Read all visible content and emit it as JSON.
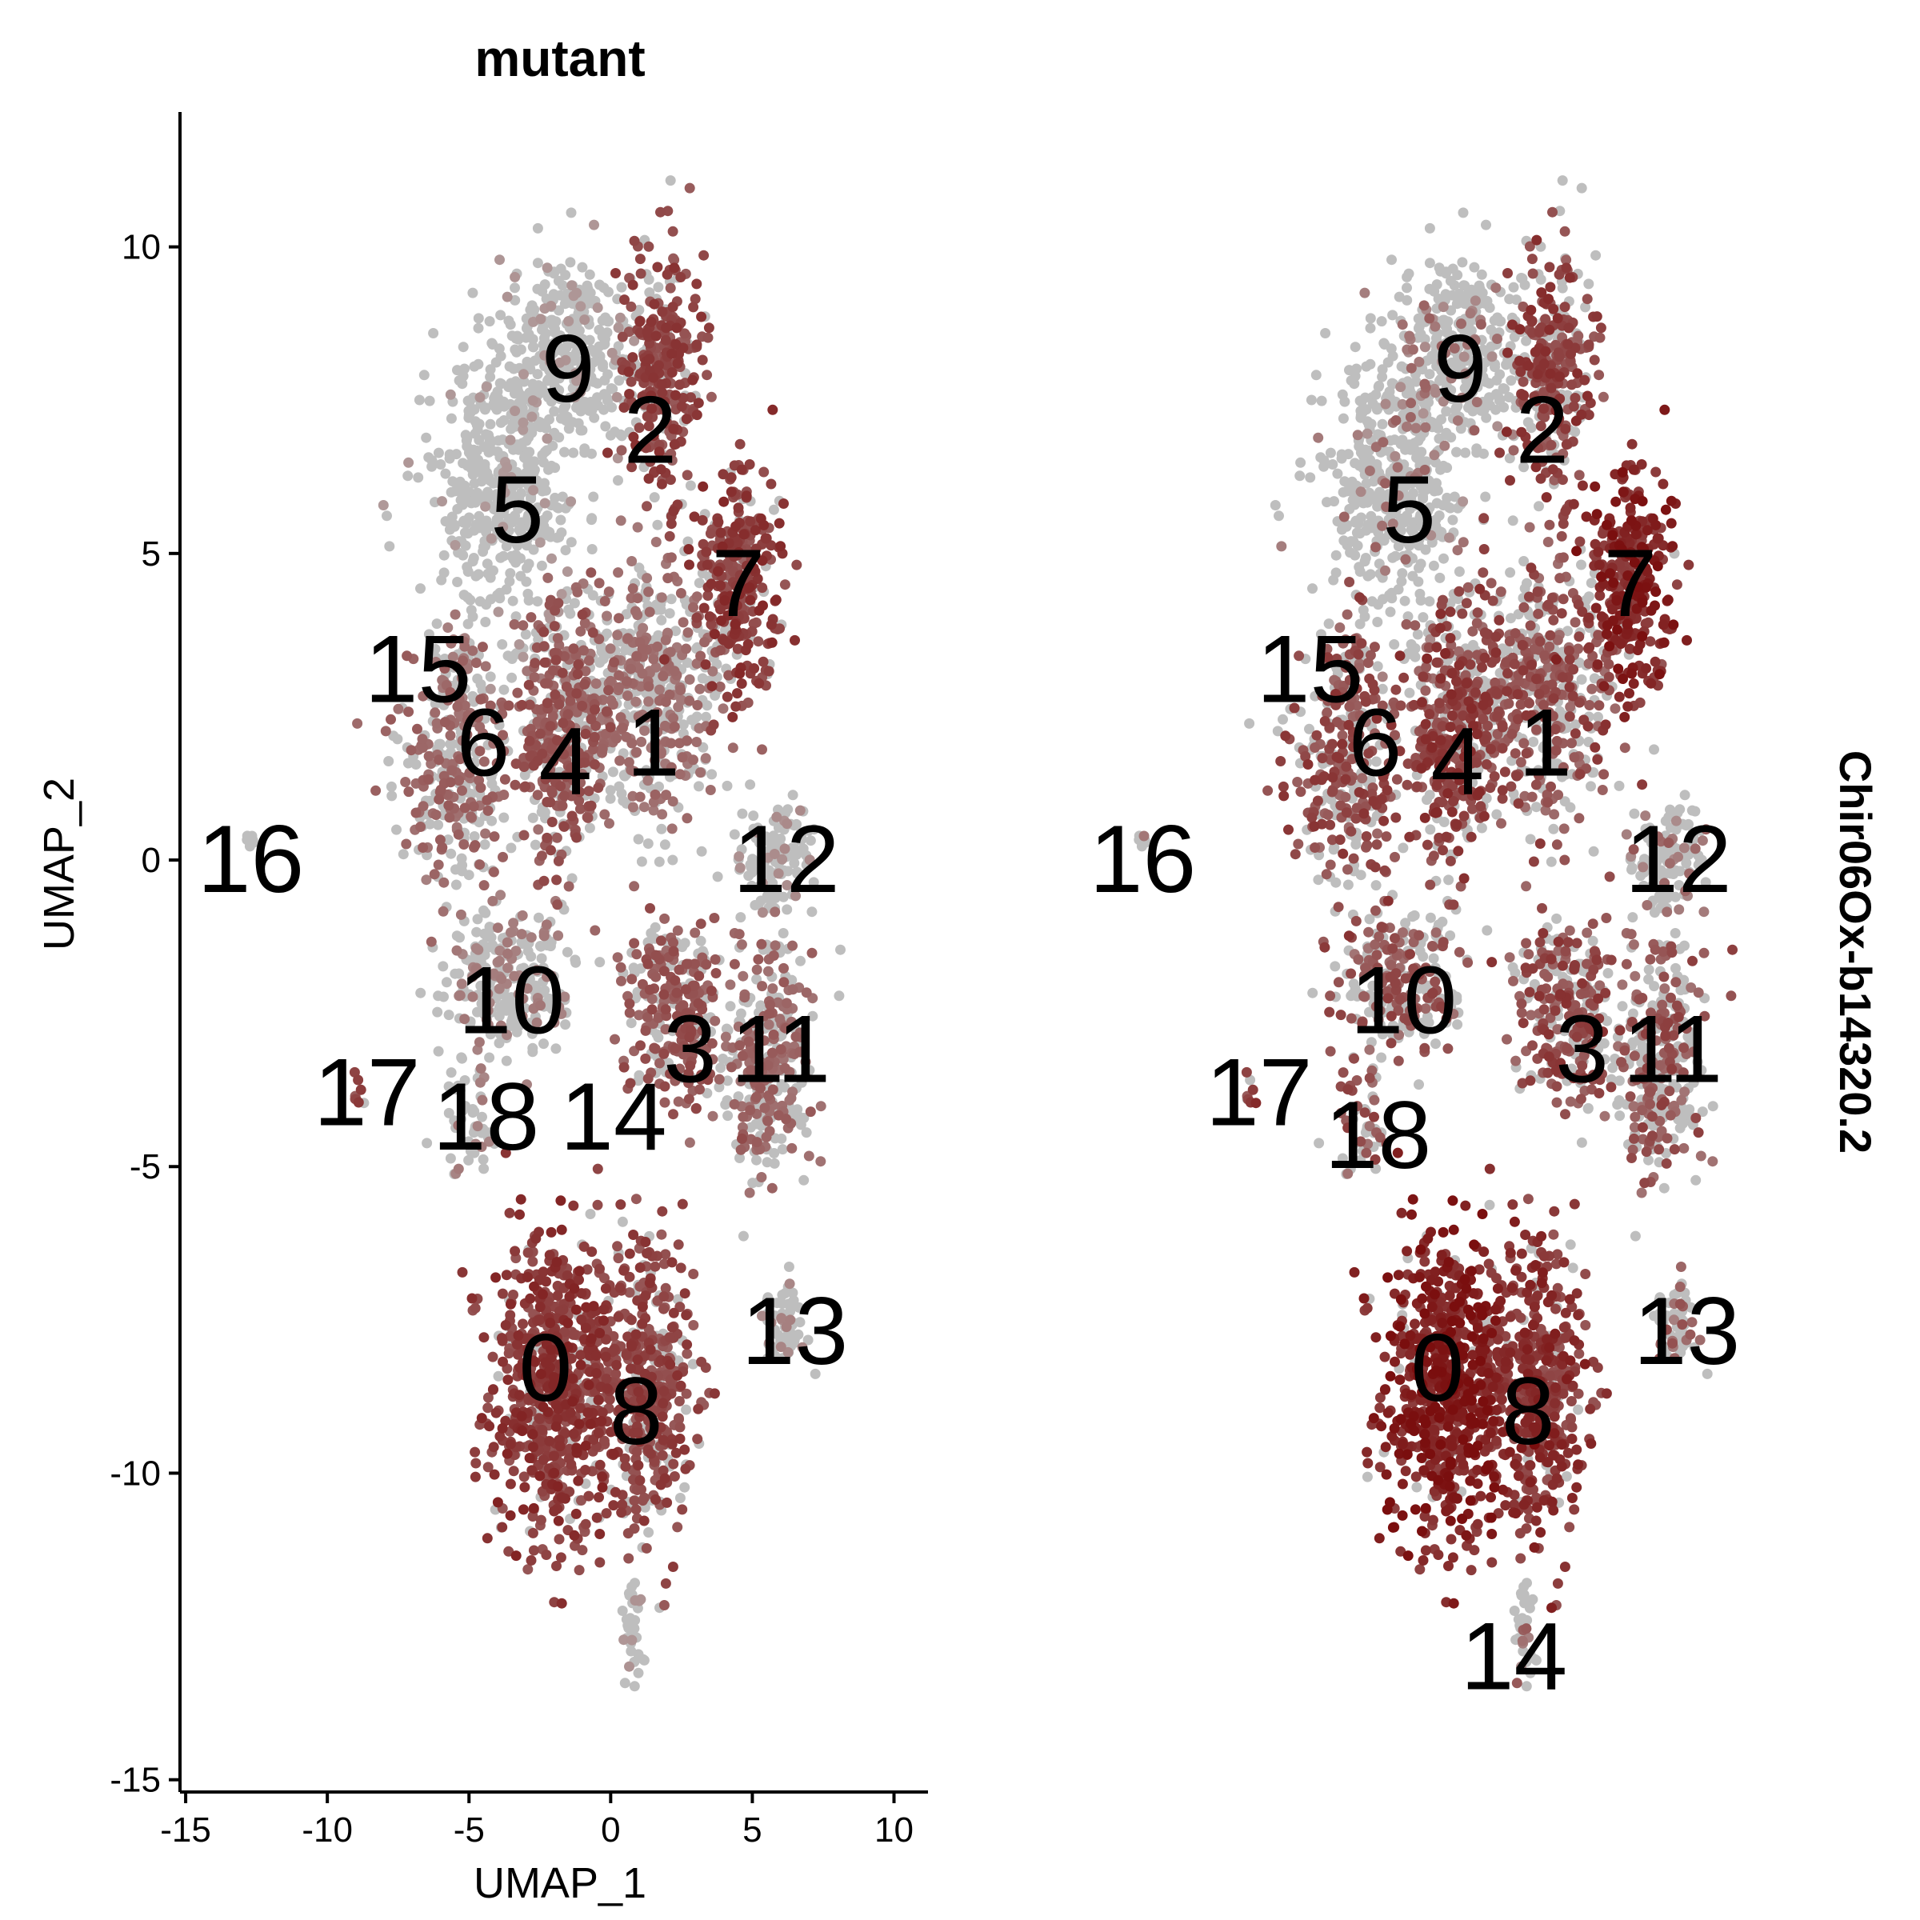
{
  "colors": {
    "low": "#BEBEBE",
    "high": "#7A0E0E",
    "axis": "#000000"
  },
  "chart_data": {
    "type": "scatter",
    "title": "mutant",
    "strip_label": "Chir06Ox-b14320.2",
    "xlabel": "UMAP_1",
    "ylabel": "UMAP_2",
    "xlim": [
      -15.2,
      11.2
    ],
    "ylim": [
      -15.2,
      12.2
    ],
    "x_ticks": [
      -15,
      -10,
      -5,
      0,
      5,
      10
    ],
    "x_tick_labels": [
      "-15",
      "-10",
      "-5",
      "0",
      "5",
      "10"
    ],
    "y_ticks": [
      -15,
      -10,
      -5,
      0,
      5,
      10
    ],
    "y_tick_labels": [
      "-15",
      "-10",
      "-5",
      "0",
      "5",
      "10"
    ],
    "grid": false,
    "point_color_scale": "grey (low) to dark red (high) expression",
    "clusters": [
      {
        "id": "0",
        "x": -2.0,
        "y": -8.6,
        "sx": 1.5,
        "sy": 1.7,
        "n": 700,
        "level_mutant": 0.62,
        "level_second": 0.8
      },
      {
        "id": "8",
        "x": 1.3,
        "y": -8.6,
        "sx": 1.1,
        "sy": 1.6,
        "n": 450,
        "level_mutant": 0.55,
        "level_second": 0.62
      },
      {
        "id": "9",
        "x": -1.5,
        "y": 8.4,
        "sx": 1.6,
        "sy": 1.0,
        "n": 320,
        "level_mutant": 0.05,
        "level_second": 0.08
      },
      {
        "id": "2",
        "x": 1.8,
        "y": 7.9,
        "sx": 1.0,
        "sy": 1.4,
        "n": 320,
        "level_mutant": 0.55,
        "level_second": 0.5
      },
      {
        "id": "5",
        "x": -3.8,
        "y": 6.1,
        "sx": 1.6,
        "sy": 1.4,
        "n": 480,
        "level_mutant": 0.03,
        "level_second": 0.05
      },
      {
        "id": "7",
        "x": 4.6,
        "y": 4.6,
        "sx": 1.0,
        "sy": 1.2,
        "n": 300,
        "level_mutant": 0.6,
        "level_second": 0.75
      },
      {
        "id": "1",
        "x": 1.2,
        "y": 2.8,
        "sx": 1.8,
        "sy": 1.5,
        "n": 520,
        "level_mutant": 0.3,
        "level_second": 0.4
      },
      {
        "id": "4",
        "x": -1.8,
        "y": 2.0,
        "sx": 1.1,
        "sy": 1.3,
        "n": 380,
        "level_mutant": 0.45,
        "level_second": 0.52
      },
      {
        "id": "15",
        "x": -5.5,
        "y": 3.2,
        "sx": 0.6,
        "sy": 0.6,
        "n": 60,
        "level_mutant": 0.25,
        "level_second": 0.4
      },
      {
        "id": "6",
        "x": -5.6,
        "y": 1.4,
        "sx": 1.3,
        "sy": 1.2,
        "n": 260,
        "level_mutant": 0.35,
        "level_second": 0.45
      },
      {
        "id": "12",
        "x": 5.8,
        "y": 0.0,
        "sx": 0.9,
        "sy": 0.6,
        "n": 120,
        "level_mutant": 0.1,
        "level_second": 0.15
      },
      {
        "id": "16",
        "x": -12.8,
        "y": 0.3,
        "sx": 0.15,
        "sy": 0.15,
        "n": 6,
        "level_mutant": 0.05,
        "level_second": 0.05
      },
      {
        "id": "10",
        "x": -3.6,
        "y": -1.9,
        "sx": 1.5,
        "sy": 0.9,
        "n": 260,
        "level_mutant": 0.2,
        "level_second": 0.35
      },
      {
        "id": "3",
        "x": 2.2,
        "y": -2.4,
        "sx": 1.2,
        "sy": 1.0,
        "n": 260,
        "level_mutant": 0.45,
        "level_second": 0.45
      },
      {
        "id": "11",
        "x": 5.5,
        "y": -3.2,
        "sx": 1.1,
        "sy": 1.2,
        "n": 300,
        "level_mutant": 0.35,
        "level_second": 0.35
      },
      {
        "id": "17",
        "x": -8.8,
        "y": -3.8,
        "sx": 0.2,
        "sy": 0.2,
        "n": 8,
        "level_mutant": 0.55,
        "level_second": 0.55
      },
      {
        "id": "18",
        "x": -5.0,
        "y": -4.4,
        "sx": 0.7,
        "sy": 0.6,
        "n": 50,
        "level_mutant": 0.2,
        "level_second": 0.35
      },
      {
        "id": "14",
        "x": 0.8,
        "y": -12.6,
        "sx": 0.25,
        "sy": 0.6,
        "n": 40,
        "level_mutant": 0.05,
        "level_second": 0.1
      },
      {
        "id": "13",
        "x": 6.2,
        "y": -7.5,
        "sx": 0.5,
        "sy": 0.5,
        "n": 60,
        "level_mutant": 0.15,
        "level_second": 0.25
      }
    ],
    "panels": [
      {
        "name": "mutant",
        "labels": [
          {
            "text": "9",
            "x": -1.5,
            "y": 8.0
          },
          {
            "text": "2",
            "x": 1.4,
            "y": 7.0
          },
          {
            "text": "5",
            "x": -3.3,
            "y": 5.7
          },
          {
            "text": "7",
            "x": 4.5,
            "y": 4.5
          },
          {
            "text": "15",
            "x": -6.8,
            "y": 3.1
          },
          {
            "text": "6",
            "x": -4.5,
            "y": 1.9
          },
          {
            "text": "4",
            "x": -1.6,
            "y": 1.6
          },
          {
            "text": "1",
            "x": 1.5,
            "y": 1.9
          },
          {
            "text": "16",
            "x": -12.7,
            "y": 0.0
          },
          {
            "text": "12",
            "x": 6.2,
            "y": 0.0
          },
          {
            "text": "10",
            "x": -3.5,
            "y": -2.3
          },
          {
            "text": "3",
            "x": 2.8,
            "y": -3.1
          },
          {
            "text": "11",
            "x": 6.0,
            "y": -3.1
          },
          {
            "text": "17",
            "x": -8.6,
            "y": -3.8
          },
          {
            "text": "18",
            "x": -4.4,
            "y": -4.2
          },
          {
            "text": "14",
            "x": 0.1,
            "y": -4.2
          },
          {
            "text": "13",
            "x": 6.5,
            "y": -7.7
          },
          {
            "text": "0",
            "x": -2.3,
            "y": -8.3
          },
          {
            "text": "8",
            "x": 0.9,
            "y": -9.0
          }
        ]
      },
      {
        "name": "Chir06Ox-b14320.2",
        "labels": [
          {
            "text": "9",
            "x": -1.5,
            "y": 8.0
          },
          {
            "text": "2",
            "x": 1.4,
            "y": 7.0
          },
          {
            "text": "5",
            "x": -3.3,
            "y": 5.7
          },
          {
            "text": "7",
            "x": 4.5,
            "y": 4.5
          },
          {
            "text": "15",
            "x": -6.8,
            "y": 3.1
          },
          {
            "text": "6",
            "x": -4.5,
            "y": 1.9
          },
          {
            "text": "4",
            "x": -1.6,
            "y": 1.6
          },
          {
            "text": "1",
            "x": 1.5,
            "y": 1.9
          },
          {
            "text": "16",
            "x": -12.7,
            "y": 0.0
          },
          {
            "text": "12",
            "x": 6.2,
            "y": 0.0
          },
          {
            "text": "10",
            "x": -3.5,
            "y": -2.3
          },
          {
            "text": "3",
            "x": 2.8,
            "y": -3.1
          },
          {
            "text": "11",
            "x": 6.0,
            "y": -3.1
          },
          {
            "text": "17",
            "x": -8.6,
            "y": -3.8
          },
          {
            "text": "18",
            "x": -4.4,
            "y": -4.5
          },
          {
            "text": "14",
            "x": 0.4,
            "y": -13.0
          },
          {
            "text": "13",
            "x": 6.5,
            "y": -7.7
          },
          {
            "text": "0",
            "x": -2.3,
            "y": -8.3
          },
          {
            "text": "8",
            "x": 0.9,
            "y": -9.0
          }
        ]
      }
    ]
  }
}
